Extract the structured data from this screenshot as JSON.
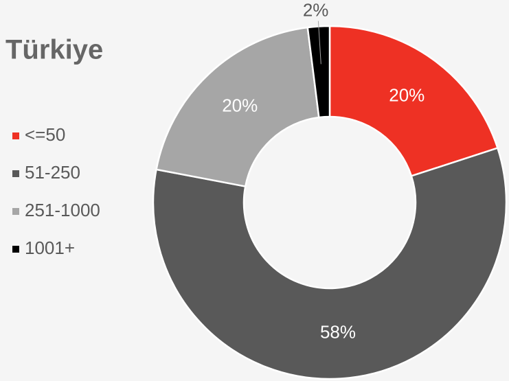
{
  "chart_data": {
    "type": "donut",
    "title": "Türkiye",
    "categories": [
      "<=50",
      "51-250",
      "251-1000",
      "1001+"
    ],
    "values": [
      20,
      58,
      20,
      2
    ],
    "value_labels": [
      "20%",
      "58%",
      "20%",
      "2%"
    ],
    "colors": [
      "#ee3124",
      "#595959",
      "#a6a6a6",
      "#000000"
    ],
    "legend": "left"
  }
}
